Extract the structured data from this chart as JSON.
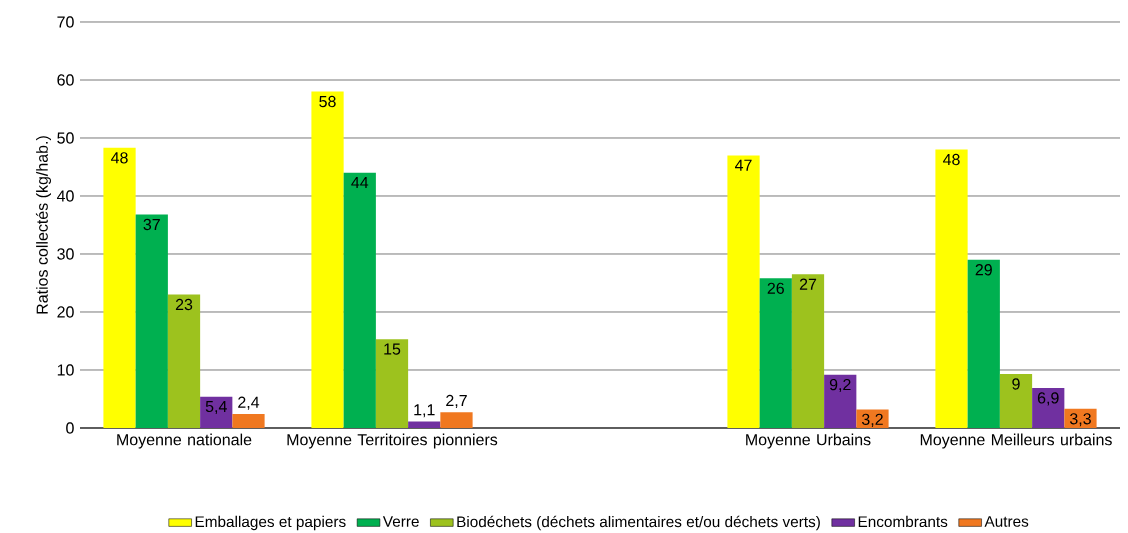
{
  "chart_data": {
    "type": "bar",
    "ylabel": "Ratios collectés (kg/hab.)",
    "categories": [
      "Moyenne nationale",
      "Moyenne Territoires pionniers",
      null,
      "Moyenne Urbains",
      "Moyenne Meilleurs urbains"
    ],
    "series": [
      {
        "name": "Emballages et papiers",
        "color": "#ffff00",
        "values": [
          48.3,
          58,
          null,
          47,
          48
        ],
        "value_labels": [
          "48",
          "58",
          null,
          "47",
          "48"
        ]
      },
      {
        "name": "Verre",
        "color": "#00b050",
        "values": [
          36.8,
          44,
          null,
          25.8,
          29
        ],
        "value_labels": [
          "37",
          "44",
          null,
          "26",
          "29"
        ]
      },
      {
        "name": "Biodéchets (déchets alimentaires et/ou déchets verts)",
        "color": "#9dc21e",
        "values": [
          23,
          15.3,
          null,
          26.5,
          9.3
        ],
        "value_labels": [
          "23",
          "15",
          null,
          "27",
          "9"
        ]
      },
      {
        "name": "Encombrants",
        "color": "#7030a0",
        "values": [
          5.4,
          1.1,
          null,
          9.2,
          6.9
        ],
        "value_labels": [
          "5,4",
          "1,1",
          null,
          "9,2",
          "6,9"
        ]
      },
      {
        "name": "Autres",
        "color": "#f07820",
        "values": [
          2.4,
          2.7,
          null,
          3.2,
          3.3
        ],
        "value_labels": [
          "2,4",
          "2,7",
          null,
          "3,2",
          "3,3"
        ]
      }
    ],
    "ylim": [
      0,
      70
    ],
    "yticks": [
      0,
      10,
      20,
      30,
      40,
      50,
      60,
      70
    ],
    "grid": "y",
    "legend": "bottom"
  }
}
